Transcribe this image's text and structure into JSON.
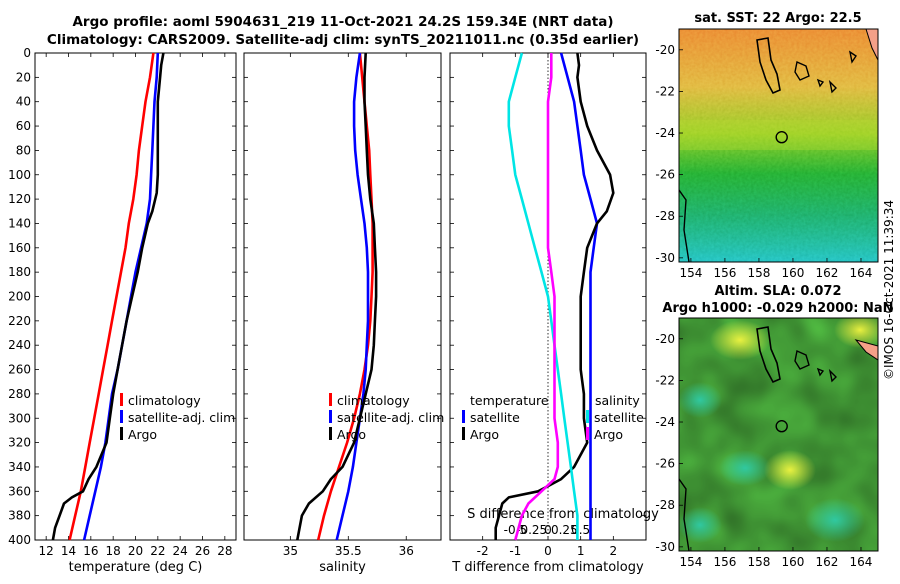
{
  "header": {
    "line1": "Argo profile: aoml 5904631_219 11-Oct-2021 24.2S 159.34E (NRT data)",
    "line2": "Climatology: CARS2009. Satellite-adj clim: synTS_20211011.nc (0.35d earlier)"
  },
  "side_label": "©IMOS 16-Oct-2021 11:39:34",
  "colors": {
    "climatology": "#ff0000",
    "satellite": "#0000ff",
    "argo": "#000000",
    "sat_salinity": "#00e5e5",
    "argo_salinity": "#ff00ff"
  },
  "chart_data": [
    {
      "type": "line",
      "id": "temperature",
      "xlabel": "temperature (deg C)",
      "ylabel": "",
      "xlim": [
        11,
        29
      ],
      "ylim": [
        0,
        400
      ],
      "xticks": [
        12,
        14,
        16,
        18,
        20,
        22,
        24,
        26,
        28
      ],
      "yticks": [
        0,
        20,
        40,
        60,
        80,
        100,
        120,
        140,
        160,
        180,
        200,
        220,
        240,
        260,
        280,
        300,
        320,
        340,
        360,
        380,
        400
      ],
      "legend": [
        "climatology",
        "satellite-adj. clim",
        "Argo"
      ],
      "series": [
        {
          "name": "climatology",
          "color": "#ff0000",
          "depth": [
            0,
            20,
            40,
            60,
            80,
            100,
            120,
            140,
            160,
            180,
            200,
            220,
            240,
            260,
            280,
            300,
            320,
            340,
            360,
            380,
            400
          ],
          "value": [
            21.6,
            21.3,
            20.9,
            20.6,
            20.3,
            20.1,
            19.8,
            19.4,
            19.1,
            18.7,
            18.3,
            17.9,
            17.5,
            17.1,
            16.7,
            16.3,
            15.9,
            15.5,
            15.1,
            14.6,
            14.1
          ]
        },
        {
          "name": "satellite-adj. clim",
          "color": "#0000ff",
          "depth": [
            0,
            20,
            40,
            60,
            80,
            100,
            120,
            140,
            160,
            180,
            200,
            220,
            240,
            260,
            280,
            300,
            320,
            340,
            360,
            380,
            400
          ],
          "value": [
            22.0,
            21.9,
            21.7,
            21.6,
            21.5,
            21.4,
            21.3,
            21.0,
            20.5,
            20.0,
            19.6,
            19.2,
            18.8,
            18.4,
            17.9,
            17.6,
            17.3,
            16.9,
            16.4,
            15.9,
            15.4
          ]
        },
        {
          "name": "Argo",
          "color": "#000000",
          "depth": [
            0,
            10,
            20,
            40,
            60,
            80,
            100,
            115,
            130,
            140,
            160,
            180,
            200,
            220,
            240,
            260,
            280,
            300,
            320,
            340,
            350,
            360,
            365,
            370,
            380,
            390,
            400
          ],
          "value": [
            22.5,
            22.3,
            22.2,
            22.0,
            22.0,
            22.0,
            22.0,
            21.9,
            21.5,
            21.1,
            20.6,
            20.2,
            19.7,
            19.2,
            18.8,
            18.4,
            18.0,
            17.7,
            17.4,
            16.5,
            15.8,
            15.3,
            14.3,
            13.6,
            13.2,
            12.8,
            12.6
          ]
        }
      ]
    },
    {
      "type": "line",
      "id": "salinity",
      "xlabel": "salinity",
      "ylabel": "",
      "xlim": [
        34.6,
        36.3
      ],
      "ylim": [
        0,
        400
      ],
      "xticks": [
        35,
        35.5,
        36
      ],
      "yticks": [],
      "legend": [
        "climatology",
        "satellite-adj. clim",
        "Argo"
      ],
      "series": [
        {
          "name": "climatology",
          "color": "#ff0000",
          "depth": [
            0,
            20,
            40,
            60,
            80,
            100,
            120,
            140,
            160,
            180,
            200,
            220,
            240,
            260,
            280,
            300,
            320,
            340,
            360,
            380,
            400
          ],
          "value": [
            35.6,
            35.62,
            35.64,
            35.66,
            35.68,
            35.69,
            35.7,
            35.71,
            35.71,
            35.71,
            35.7,
            35.69,
            35.67,
            35.64,
            35.6,
            35.55,
            35.49,
            35.42,
            35.35,
            35.29,
            35.24
          ]
        },
        {
          "name": "satellite-adj. clim",
          "color": "#0000ff",
          "depth": [
            0,
            20,
            40,
            60,
            80,
            100,
            120,
            140,
            160,
            180,
            200,
            220,
            240,
            260,
            280,
            300,
            320,
            340,
            360,
            380,
            400
          ],
          "value": [
            35.6,
            35.57,
            35.55,
            35.55,
            35.56,
            35.58,
            35.61,
            35.64,
            35.66,
            35.67,
            35.67,
            35.67,
            35.66,
            35.65,
            35.63,
            35.6,
            35.57,
            35.54,
            35.5,
            35.45,
            35.4
          ]
        },
        {
          "name": "Argo",
          "color": "#000000",
          "depth": [
            0,
            20,
            40,
            60,
            80,
            100,
            120,
            140,
            160,
            180,
            200,
            220,
            240,
            260,
            280,
            300,
            320,
            340,
            350,
            360,
            370,
            380,
            390,
            400
          ],
          "value": [
            35.65,
            35.64,
            35.64,
            35.65,
            35.66,
            35.67,
            35.69,
            35.72,
            35.73,
            35.74,
            35.74,
            35.73,
            35.72,
            35.7,
            35.65,
            35.6,
            35.55,
            35.45,
            35.35,
            35.28,
            35.16,
            35.1,
            35.08,
            35.06
          ]
        }
      ]
    },
    {
      "type": "line",
      "id": "difference",
      "xlabel": "T difference from climatology",
      "xlabel2": "S difference from climatology",
      "ylabel": "",
      "xlim": [
        -3,
        3
      ],
      "ylim": [
        0,
        400
      ],
      "xticks": [
        -2,
        -1,
        0,
        1,
        2
      ],
      "xtick_labels": [
        "-2",
        "-1",
        "0",
        "1",
        "2"
      ],
      "xticks2": [
        -1,
        -0.5,
        0,
        0.5,
        1
      ],
      "xtick2_labels": [
        "-0.5",
        "-0.25",
        "0",
        "0.25",
        "0.5"
      ],
      "yticks": [],
      "legend_temperature_title": "temperature",
      "legend_salinity_title": "salinity",
      "legend": [
        "satellite",
        "Argo",
        "satellite",
        "Argo"
      ],
      "series": [
        {
          "name": "satellite",
          "group": "temperature",
          "color": "#0000ff",
          "depth": [
            0,
            20,
            40,
            60,
            80,
            100,
            120,
            140,
            160,
            180,
            200,
            220,
            240,
            260,
            280,
            300,
            320,
            340,
            360,
            380,
            400
          ],
          "value": [
            0.4,
            0.6,
            0.8,
            0.9,
            1.0,
            1.1,
            1.3,
            1.5,
            1.4,
            1.3,
            1.3,
            1.3,
            1.3,
            1.3,
            1.3,
            1.3,
            1.3,
            1.3,
            1.3,
            1.3,
            1.3
          ]
        },
        {
          "name": "Argo",
          "group": "temperature",
          "color": "#000000",
          "depth": [
            0,
            10,
            20,
            40,
            60,
            80,
            100,
            115,
            130,
            140,
            160,
            180,
            200,
            220,
            240,
            260,
            280,
            300,
            320,
            340,
            350,
            360,
            365,
            370,
            380,
            390,
            400
          ],
          "value": [
            0.9,
            0.95,
            0.9,
            1.0,
            1.2,
            1.5,
            1.9,
            2.0,
            1.8,
            1.5,
            1.2,
            1.1,
            1.0,
            1.0,
            1.0,
            1.0,
            1.1,
            1.1,
            1.2,
            0.8,
            0.4,
            -0.3,
            -1.2,
            -1.4,
            -1.5,
            -1.6,
            -1.6
          ]
        },
        {
          "name": "satellite",
          "group": "salinity",
          "color": "#00e5e5",
          "depth": [
            0,
            20,
            40,
            60,
            80,
            100,
            120,
            140,
            160,
            180,
            200,
            220,
            240,
            260,
            280,
            300,
            320,
            340,
            360,
            380,
            400
          ],
          "value": [
            -0.4,
            -0.5,
            -0.6,
            -0.6,
            -0.55,
            -0.5,
            -0.4,
            -0.3,
            -0.2,
            -0.1,
            0,
            0.05,
            0.1,
            0.15,
            0.2,
            0.25,
            0.3,
            0.35,
            0.4,
            0.45,
            0.45
          ]
        },
        {
          "name": "Argo",
          "group": "salinity",
          "color": "#ff00ff",
          "depth": [
            0,
            20,
            40,
            60,
            80,
            100,
            120,
            140,
            160,
            180,
            200,
            220,
            240,
            260,
            280,
            300,
            320,
            340,
            350,
            360,
            370,
            380,
            390,
            400
          ],
          "value": [
            0.05,
            0.05,
            0.0,
            0.0,
            0.0,
            0.0,
            0.0,
            0.0,
            0.0,
            0.05,
            0.1,
            0.1,
            0.1,
            0.1,
            0.1,
            0.1,
            0.15,
            0.15,
            0.1,
            -0.1,
            -0.3,
            -0.4,
            -0.45,
            -0.5
          ]
        }
      ]
    },
    {
      "type": "heatmap",
      "id": "sst_map",
      "title": "sat. SST: 22 Argo: 22.5",
      "xlim": [
        153.3,
        165
      ],
      "ylim": [
        -30.2,
        -19
      ],
      "xticks": [
        154,
        156,
        158,
        160,
        162,
        164
      ],
      "yticks": [
        -20,
        -22,
        -24,
        -26,
        -28,
        -30
      ],
      "marker": {
        "lon": 159.34,
        "lat": -24.2
      }
    },
    {
      "type": "heatmap",
      "id": "sla_map",
      "title": "Altim. SLA: 0.072",
      "subtitle": "Argo h1000: -0.029 h2000: NaN",
      "xlim": [
        153.3,
        165
      ],
      "ylim": [
        -30.2,
        -19
      ],
      "xticks": [
        154,
        156,
        158,
        160,
        162,
        164
      ],
      "yticks": [
        -20,
        -22,
        -24,
        -26,
        -28,
        -30
      ],
      "marker": {
        "lon": 159.34,
        "lat": -24.2
      }
    }
  ]
}
